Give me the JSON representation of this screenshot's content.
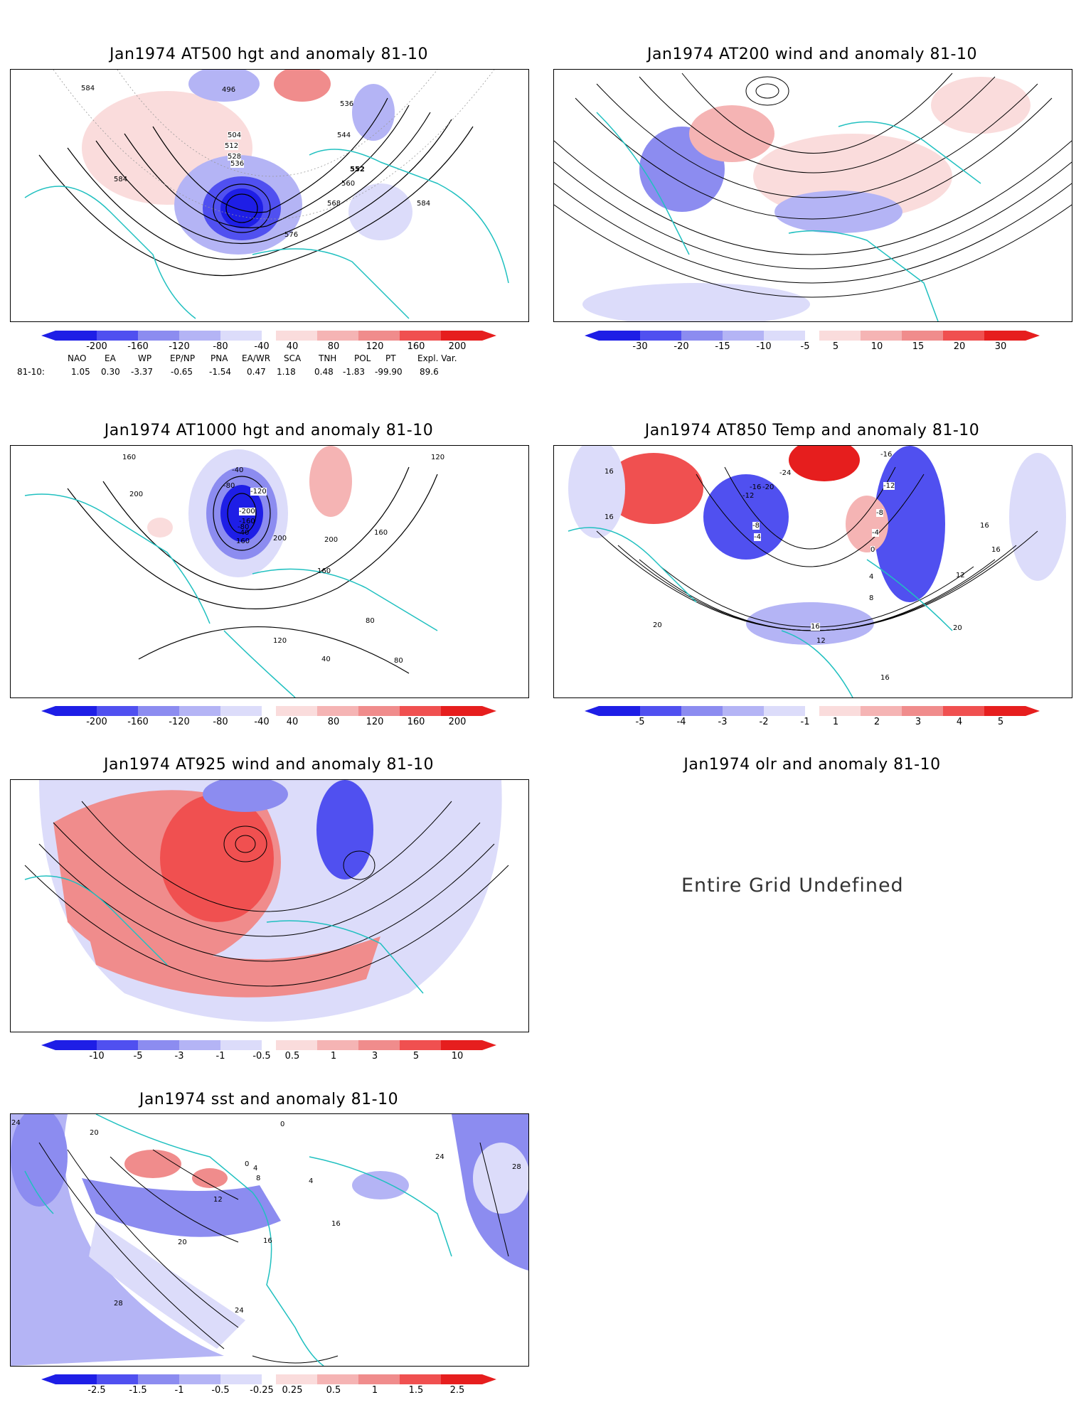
{
  "panels": [
    {
      "id": "at500",
      "title": "Jan1974 AT500 hgt and anomaly 81-10",
      "contour_labels": [
        "584",
        "496",
        "504",
        "512",
        "528",
        "536",
        "536",
        "544",
        "552",
        "560",
        "568",
        "576",
        "584",
        "584"
      ],
      "colorbar": [
        "-200",
        "-160",
        "-120",
        "-80",
        "-40",
        "40",
        "80",
        "120",
        "160",
        "200"
      ]
    },
    {
      "id": "at200",
      "title": "Jan1974 AT200 wind and anomaly 81-10",
      "colorbar": [
        "-30",
        "-20",
        "-15",
        "-10",
        "-5",
        "5",
        "10",
        "15",
        "20",
        "30"
      ]
    },
    {
      "id": "at1000",
      "title": "Jan1974 AT1000 hgt and anomaly 81-10",
      "contour_labels": [
        "160",
        "200",
        "-40",
        "-80",
        "-120",
        "-200",
        "-160",
        "-80",
        "-40",
        "160",
        "200",
        "120",
        "80",
        "80",
        "120",
        "160",
        "200",
        "160",
        "40"
      ],
      "colorbar": [
        "-200",
        "-160",
        "-120",
        "-80",
        "-40",
        "40",
        "80",
        "120",
        "160",
        "200"
      ]
    },
    {
      "id": "at850",
      "title": "Jan1974 AT850 Temp and anomaly 81-10",
      "contour_labels": [
        "16",
        "16",
        "-24",
        "-20",
        "-16",
        "-12",
        "-8",
        "-4",
        "-16",
        "-12",
        "-8",
        "-4",
        "0",
        "4",
        "8",
        "12",
        "16",
        "16",
        "20",
        "20",
        "16",
        "12",
        "16"
      ],
      "colorbar": [
        "-5",
        "-4",
        "-3",
        "-2",
        "-1",
        "1",
        "2",
        "3",
        "4",
        "5"
      ]
    },
    {
      "id": "at925",
      "title": "Jan1974 AT925 wind and anomaly 81-10",
      "colorbar": [
        "-10",
        "-5",
        "-3",
        "-1",
        "-0.5",
        "0.5",
        "1",
        "3",
        "5",
        "10"
      ]
    },
    {
      "id": "olr",
      "title": "Jan1974 olr and anomaly 81-10",
      "message": "Entire Grid Undefined"
    },
    {
      "id": "sst",
      "title": "Jan1974 sst and anomaly 81-10",
      "contour_labels": [
        "24",
        "20",
        "0",
        "4",
        "8",
        "12",
        "16",
        "20",
        "24",
        "28",
        "16",
        "24",
        "28",
        "0",
        "4"
      ],
      "colorbar": [
        "-2.5",
        "-1.5",
        "-1",
        "-0.5",
        "-0.25",
        "0.25",
        "0.5",
        "1",
        "1.5",
        "2.5"
      ]
    }
  ],
  "indices": {
    "headers": [
      "NAO",
      "EA",
      "WP",
      "EP/NP",
      "PNA",
      "EA/WR",
      "SCA",
      "TNH",
      "POL",
      "PT",
      "Expl. Var."
    ],
    "row_label": "81-10:",
    "values": [
      "1.05",
      "0.30",
      "-3.37",
      "-0.65",
      "-1.54",
      "0.47",
      "1.18",
      "0.48",
      "-1.83",
      "-99.90",
      "89.6"
    ]
  },
  "colors": {
    "coast": "#20c0c0",
    "contour": "#000000",
    "neg": [
      "#1e1ee6",
      "#5050f0",
      "#8c8cf0",
      "#b4b4f5",
      "#dcdcfa"
    ],
    "pos": [
      "#fadcdc",
      "#f5b4b4",
      "#f08c8c",
      "#f05050",
      "#e61e1e"
    ]
  }
}
